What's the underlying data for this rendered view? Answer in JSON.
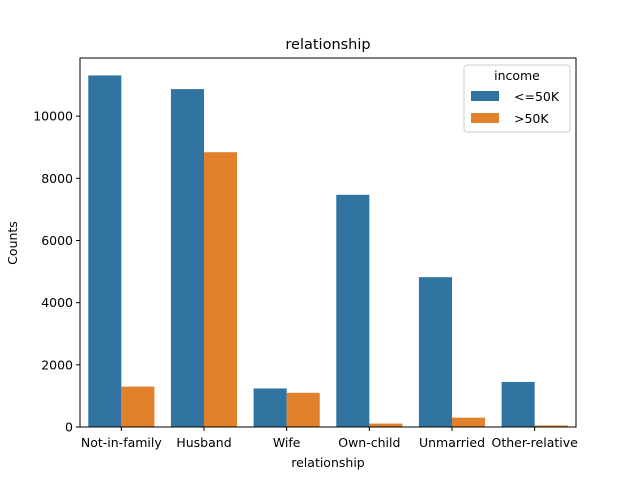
{
  "chart_data": {
    "type": "bar",
    "title": "relationship",
    "xlabel": "relationship",
    "ylabel": "Counts",
    "ylim": [
      0,
      11870
    ],
    "yticks": [
      0,
      2000,
      4000,
      6000,
      8000,
      10000
    ],
    "yticklabels": [
      "0",
      "2000",
      "4000",
      "6000",
      "8000",
      "10000"
    ],
    "categories": [
      "Not-in-family",
      "Husband",
      "Wife",
      "Own-child",
      "Unmarried",
      "Other-relative"
    ],
    "legend": {
      "title": "income",
      "placement": "top-right"
    },
    "grid": false,
    "series": [
      {
        "name": "<=50K",
        "color": "#3274a1",
        "values": [
          11310,
          10870,
          1240,
          7470,
          4820,
          1450
        ]
      },
      {
        "name": ">50K",
        "color": "#e1812c",
        "values": [
          1300,
          8840,
          1100,
          110,
          300,
          50
        ]
      }
    ]
  }
}
